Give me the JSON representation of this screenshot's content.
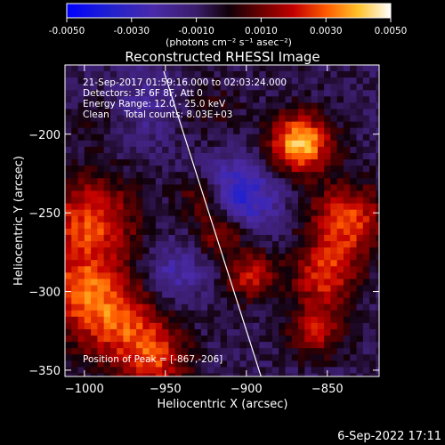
{
  "chart_data": {
    "type": "heatmap",
    "title": "Reconstructed RHESSI Image",
    "xlabel": "Heliocentric X (arcsec)",
    "ylabel": "Heliocentric Y (arcsec)",
    "xlim": [
      -1012,
      -818
    ],
    "ylim": [
      -354,
      -156
    ],
    "x_ticks": [
      -1000,
      -950,
      -900,
      -850
    ],
    "y_ticks": [
      -350,
      -300,
      -250,
      -200
    ],
    "colorbar": {
      "range": [
        -0.005,
        0.005
      ],
      "ticks": [
        "-0.0050",
        "-0.0030",
        "-0.0010",
        "0.0010",
        "0.0030",
        "0.0050"
      ],
      "tick_values": [
        -0.005,
        -0.003,
        -0.001,
        0.001,
        0.003,
        0.005
      ],
      "unit_label": "(photons cm⁻² s⁻¹ asec⁻²)"
    },
    "annotations": [
      "21-Sep-2017 01:59:16.000 to 02:03:24.000",
      "Detectors: 3F 6F 8F, Att 0",
      "Energy Range: 12.0 - 25.0 keV",
      "Clean     Total counts: 8.03E+03",
      "Position of Peak = [-867,-206]"
    ],
    "peak_position": [
      -867,
      -206
    ],
    "limb_line": {
      "from": [
        -951,
        -160
      ],
      "to": [
        -890,
        -357
      ]
    },
    "sources": [
      {
        "x": -867,
        "y": -206,
        "sigma": 13,
        "amp": 0.005
      },
      {
        "x": -996,
        "y": -255,
        "sigma": 20,
        "amp": 0.0033
      },
      {
        "x": -1002,
        "y": -300,
        "sigma": 18,
        "amp": 0.003
      },
      {
        "x": -975,
        "y": -322,
        "sigma": 20,
        "amp": 0.003
      },
      {
        "x": -955,
        "y": -345,
        "sigma": 14,
        "amp": 0.0024
      },
      {
        "x": -915,
        "y": -262,
        "sigma": 11,
        "amp": 0.0028
      },
      {
        "x": -897,
        "y": -290,
        "sigma": 11,
        "amp": 0.0028
      },
      {
        "x": -928,
        "y": -240,
        "sigma": 10,
        "amp": 0.0022
      },
      {
        "x": -838,
        "y": -255,
        "sigma": 16,
        "amp": 0.0035
      },
      {
        "x": -852,
        "y": -290,
        "sigma": 14,
        "amp": 0.003
      },
      {
        "x": -857,
        "y": -325,
        "sigma": 12,
        "amp": 0.0025
      },
      {
        "x": -990,
        "y": -190,
        "sigma": 12,
        "amp": 0.0008
      },
      {
        "x": -925,
        "y": -185,
        "sigma": 14,
        "amp": 0.001
      }
    ],
    "negative_regions": [
      {
        "x": -905,
        "y": -240,
        "sigma": 17,
        "amp": -0.0028
      },
      {
        "x": -945,
        "y": -290,
        "sigma": 14,
        "amp": -0.0017
      },
      {
        "x": -960,
        "y": -180,
        "sigma": 18,
        "amp": -0.0012
      }
    ],
    "background_level": -0.0007
  },
  "footer": {
    "timestamp": "6-Sep-2022 17:11"
  }
}
